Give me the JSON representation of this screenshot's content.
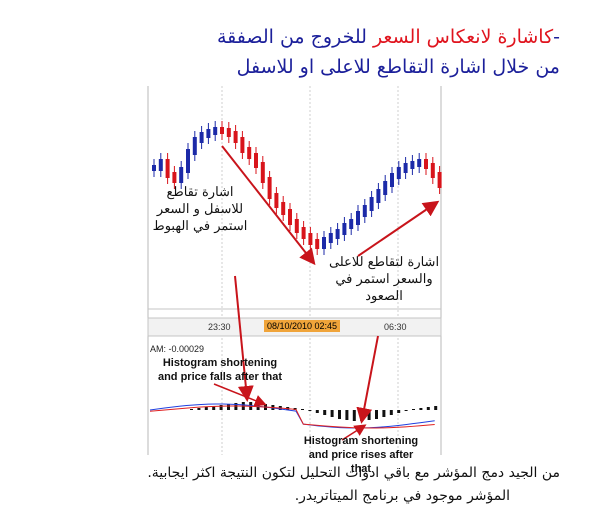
{
  "title": {
    "line1_dash": "-",
    "line1_red": "كاشارة لانعكاس السعر",
    "line1_blue": " للخروج من الصفقة",
    "line2": "من خلال اشارة التقاطع للاعلى او للاسفل"
  },
  "annotations": {
    "left_arabic": "اشارة تقاطع للاسفل و السعر استمر في الهبوط",
    "right_arabic": "اشارة لتقاطع للاعلى والسعر استمر في الصعود",
    "english_1": "Histogram shortening and price falls after that",
    "english_2": "Histogram shortening and price rises after that"
  },
  "axis": {
    "tick_1": "23:30",
    "tick_2": "08/10/2010 02:45",
    "tick_3": "06:30",
    "indicator_label": "AM: -0.00029"
  },
  "footer": {
    "line1": "من الجيد دمج المؤشر مع باقي ادوات التحليل لتكون النتيجة اكثر ايجابية.",
    "line2": "المؤشر موجود في برنامج الميتاتريدر."
  },
  "colors": {
    "title_blue": "#1b1f9a",
    "title_red": "#e0141e",
    "bull_candle": "#1c2aa8",
    "bear_candle": "#d8141b",
    "arrow": "#c8141b",
    "signal_blue": "#2040e0",
    "signal_red": "#e02020"
  }
}
